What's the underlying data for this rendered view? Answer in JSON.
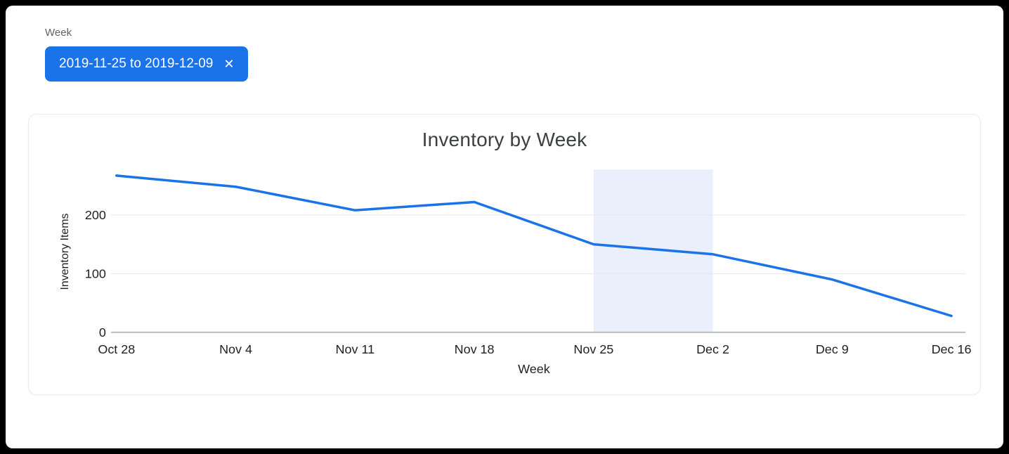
{
  "filter": {
    "label": "Week",
    "chip": {
      "text": "2019-11-25 to 2019-12-09",
      "close_icon": "✕",
      "color": "#1a73e8"
    }
  },
  "chart_data": {
    "type": "line",
    "title": "Inventory by Week",
    "xlabel": "Week",
    "ylabel": "Inventory Items",
    "categories": [
      "Oct 28",
      "Nov 4",
      "Nov 11",
      "Nov 18",
      "Nov 25",
      "Dec 2",
      "Dec 9",
      "Dec 16"
    ],
    "series": [
      {
        "name": "Inventory Items",
        "values": [
          267,
          248,
          208,
          222,
          150,
          133,
          90,
          28
        ]
      }
    ],
    "yticks": [
      0,
      100,
      200
    ],
    "ylim": [
      0,
      275
    ],
    "grid": true,
    "legend": "none",
    "line_color": "#1a73e8",
    "grid_color": "#e6e6e6",
    "axis_line_color": "#bdbdbd",
    "tick_label_color": "#202124",
    "highlight_range": {
      "from": "Nov 25",
      "to": "Dec 2",
      "color": "#e9effb"
    }
  }
}
